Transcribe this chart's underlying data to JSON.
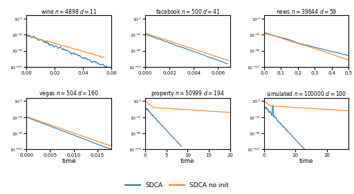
{
  "subplots": [
    {
      "title": "wine $n = 4898$ $d = 11$",
      "xlim": [
        0,
        0.06
      ],
      "xticks": [
        0.0,
        0.02,
        0.04,
        0.06
      ],
      "xticklabels": [
        "0.00",
        "0.02",
        "0.04",
        "0.06"
      ],
      "scenario": "wine"
    },
    {
      "title": "facebook $n = 500$ $d = 41$",
      "xlim": [
        0,
        0.007
      ],
      "xticks": [
        0.0,
        0.002,
        0.004,
        0.006
      ],
      "xticklabels": [
        "0.000",
        "0.002",
        "0.004",
        "0.006"
      ],
      "scenario": "facebook"
    },
    {
      "title": "news $n = 39644$ $d = 59$",
      "xlim": [
        0,
        0.5
      ],
      "xticks": [
        0.0,
        0.1,
        0.2,
        0.3,
        0.4,
        0.5
      ],
      "xticklabels": [
        "0.0",
        "0.1",
        "0.2",
        "0.3",
        "0.4",
        "0.5"
      ],
      "scenario": "news"
    },
    {
      "title": "vegas $n = 504$ $d = 160$",
      "xlim": [
        0,
        0.018
      ],
      "xticks": [
        0.0,
        0.005,
        0.01,
        0.015
      ],
      "xticklabels": [
        "0.000",
        "0.005",
        "0.010",
        "0.015"
      ],
      "scenario": "vegas"
    },
    {
      "title": "property $n = 50999$ $d = 194$",
      "xlim": [
        0,
        20
      ],
      "xticks": [
        0,
        5,
        10,
        15,
        20
      ],
      "xticklabels": [
        "0",
        "5",
        "10",
        "15",
        "20"
      ],
      "scenario": "property"
    },
    {
      "title": "simulated $n = 100000$ $d = 100$",
      "xlim": [
        0,
        27
      ],
      "xticks": [
        0,
        10,
        20
      ],
      "xticklabels": [
        "0",
        "10",
        "20"
      ],
      "scenario": "simulated"
    }
  ],
  "blue_color": "#1f77b4",
  "orange_color": "#ff7f0e",
  "legend_labels": [
    "SDCA",
    "SDCA no init"
  ],
  "xlabel": "time",
  "ylim": [
    1e-13,
    1000.0
  ],
  "yticks": [
    1e-13,
    1e-08,
    0.001,
    100.0
  ]
}
